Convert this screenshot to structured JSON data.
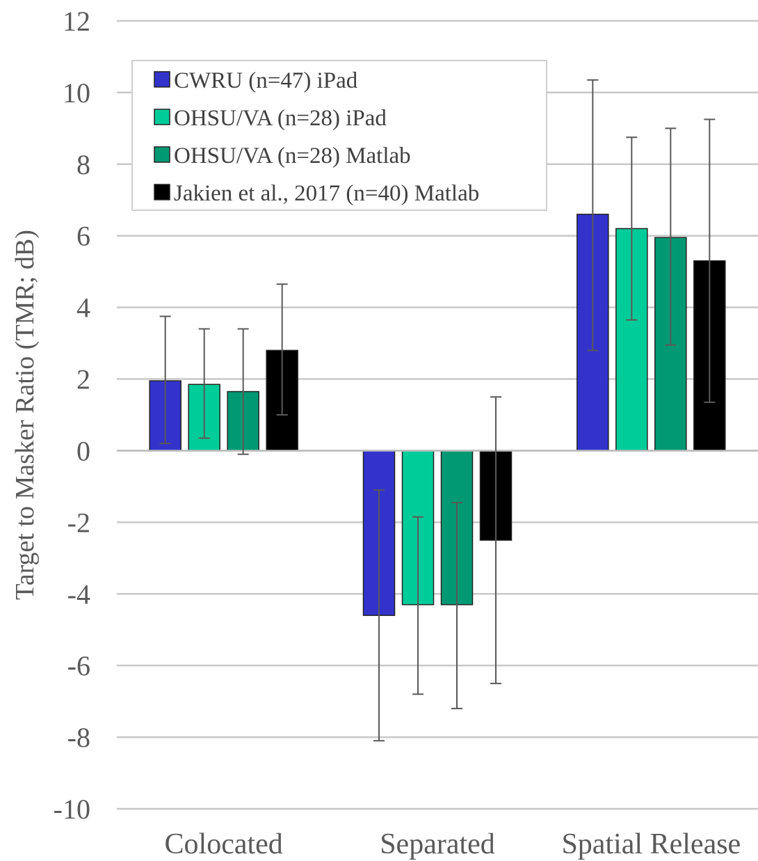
{
  "chart_data": {
    "type": "bar",
    "categories": [
      "Colocated",
      "Separated",
      "Spatial Release"
    ],
    "ylabel": "Target to Masker Ratio (TMR; dB)",
    "xlabel": "",
    "ylim": [
      -10,
      12
    ],
    "y_ticks": [
      12,
      10,
      8,
      6,
      4,
      2,
      0,
      -2,
      -4,
      -6,
      -8,
      -10
    ],
    "y_tick_labels": [
      "12",
      "10",
      "8",
      "6",
      "4",
      "2",
      "0",
      "-2",
      "-4",
      "-6",
      "-8",
      "-10"
    ],
    "grid": true,
    "legend_position": "top-left",
    "series": [
      {
        "name": "CWRU (n=47) iPad",
        "color": "#3333cc",
        "values": [
          1.95,
          -4.6,
          6.6
        ],
        "error_low": [
          0.2,
          -8.1,
          2.8
        ],
        "error_high": [
          3.75,
          -1.1,
          10.35
        ]
      },
      {
        "name": "OHSU/VA (n=28) iPad",
        "color": "#00cc99",
        "values": [
          1.85,
          -4.3,
          6.2
        ],
        "error_low": [
          0.35,
          -6.8,
          3.65
        ],
        "error_high": [
          3.4,
          -1.85,
          8.75
        ]
      },
      {
        "name": "OHSU/VA (n=28) Matlab",
        "color": "#009973",
        "values": [
          1.65,
          -4.3,
          5.95
        ],
        "error_low": [
          -0.1,
          -7.2,
          2.95
        ],
        "error_high": [
          3.4,
          -1.45,
          9.0
        ]
      },
      {
        "name": "Jakien et al., 2017 (n=40) Matlab",
        "color": "#000000",
        "values": [
          2.8,
          -2.5,
          5.3
        ],
        "error_low": [
          1.0,
          -6.5,
          1.35
        ],
        "error_high": [
          4.65,
          1.5,
          9.25
        ]
      }
    ]
  }
}
